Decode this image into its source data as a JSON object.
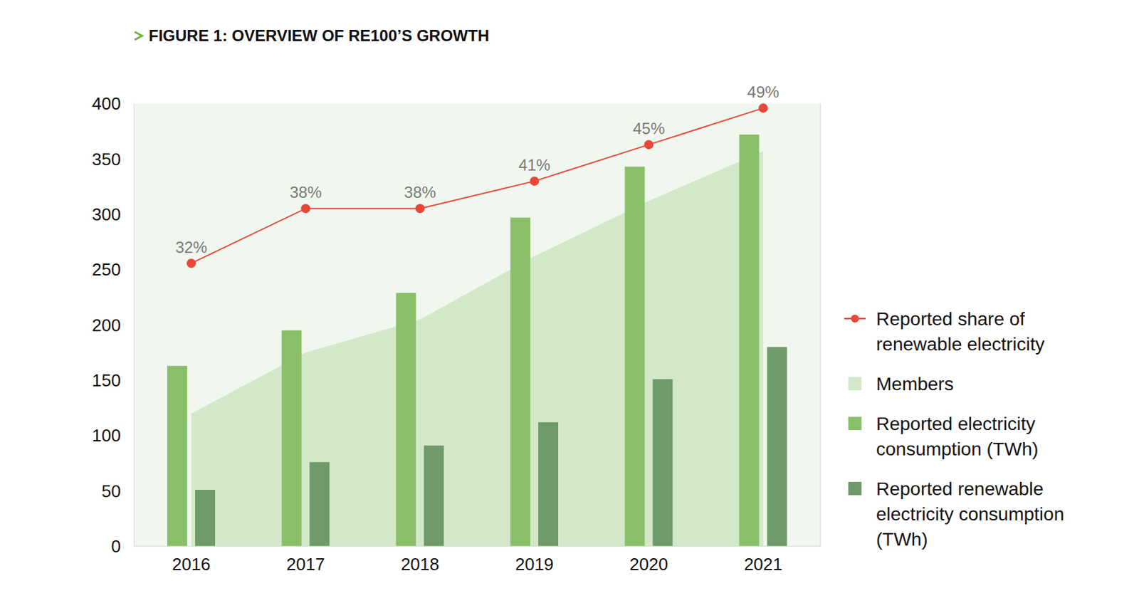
{
  "chart_data": {
    "type": "bar",
    "title": "FIGURE 1: OVERVIEW OF RE100’S GROWTH",
    "categories": [
      "2016",
      "2017",
      "2018",
      "2019",
      "2020",
      "2021"
    ],
    "series": [
      {
        "name": "Reported share of renewable electricity",
        "type": "line",
        "color": "#e8483b",
        "marker": "circle",
        "axis": "y2",
        "data_labels": true,
        "values": [
          32,
          38,
          38,
          41,
          45,
          49
        ],
        "value_labels": [
          "32%",
          "38%",
          "38%",
          "41%",
          "45%",
          "49%"
        ]
      },
      {
        "name": "Members",
        "type": "area",
        "color": "#d3e8c9",
        "values": [
          120,
          175,
          205,
          262,
          312,
          357
        ]
      },
      {
        "name": "Reported electricity consumption (TWh)",
        "type": "bar",
        "color": "#8abf69",
        "values": [
          163,
          195,
          229,
          297,
          343,
          372
        ]
      },
      {
        "name": "Reported renewable electricity consumption (TWh)",
        "type": "bar",
        "color": "#6f9a6a",
        "values": [
          51,
          76,
          91,
          112,
          151,
          180
        ]
      }
    ],
    "ylim": [
      0,
      400
    ],
    "yticks": [
      0,
      50,
      100,
      150,
      200,
      250,
      300,
      350,
      400
    ],
    "y2lim": [
      1,
      49.5
    ],
    "grid": false,
    "legend": "right"
  }
}
